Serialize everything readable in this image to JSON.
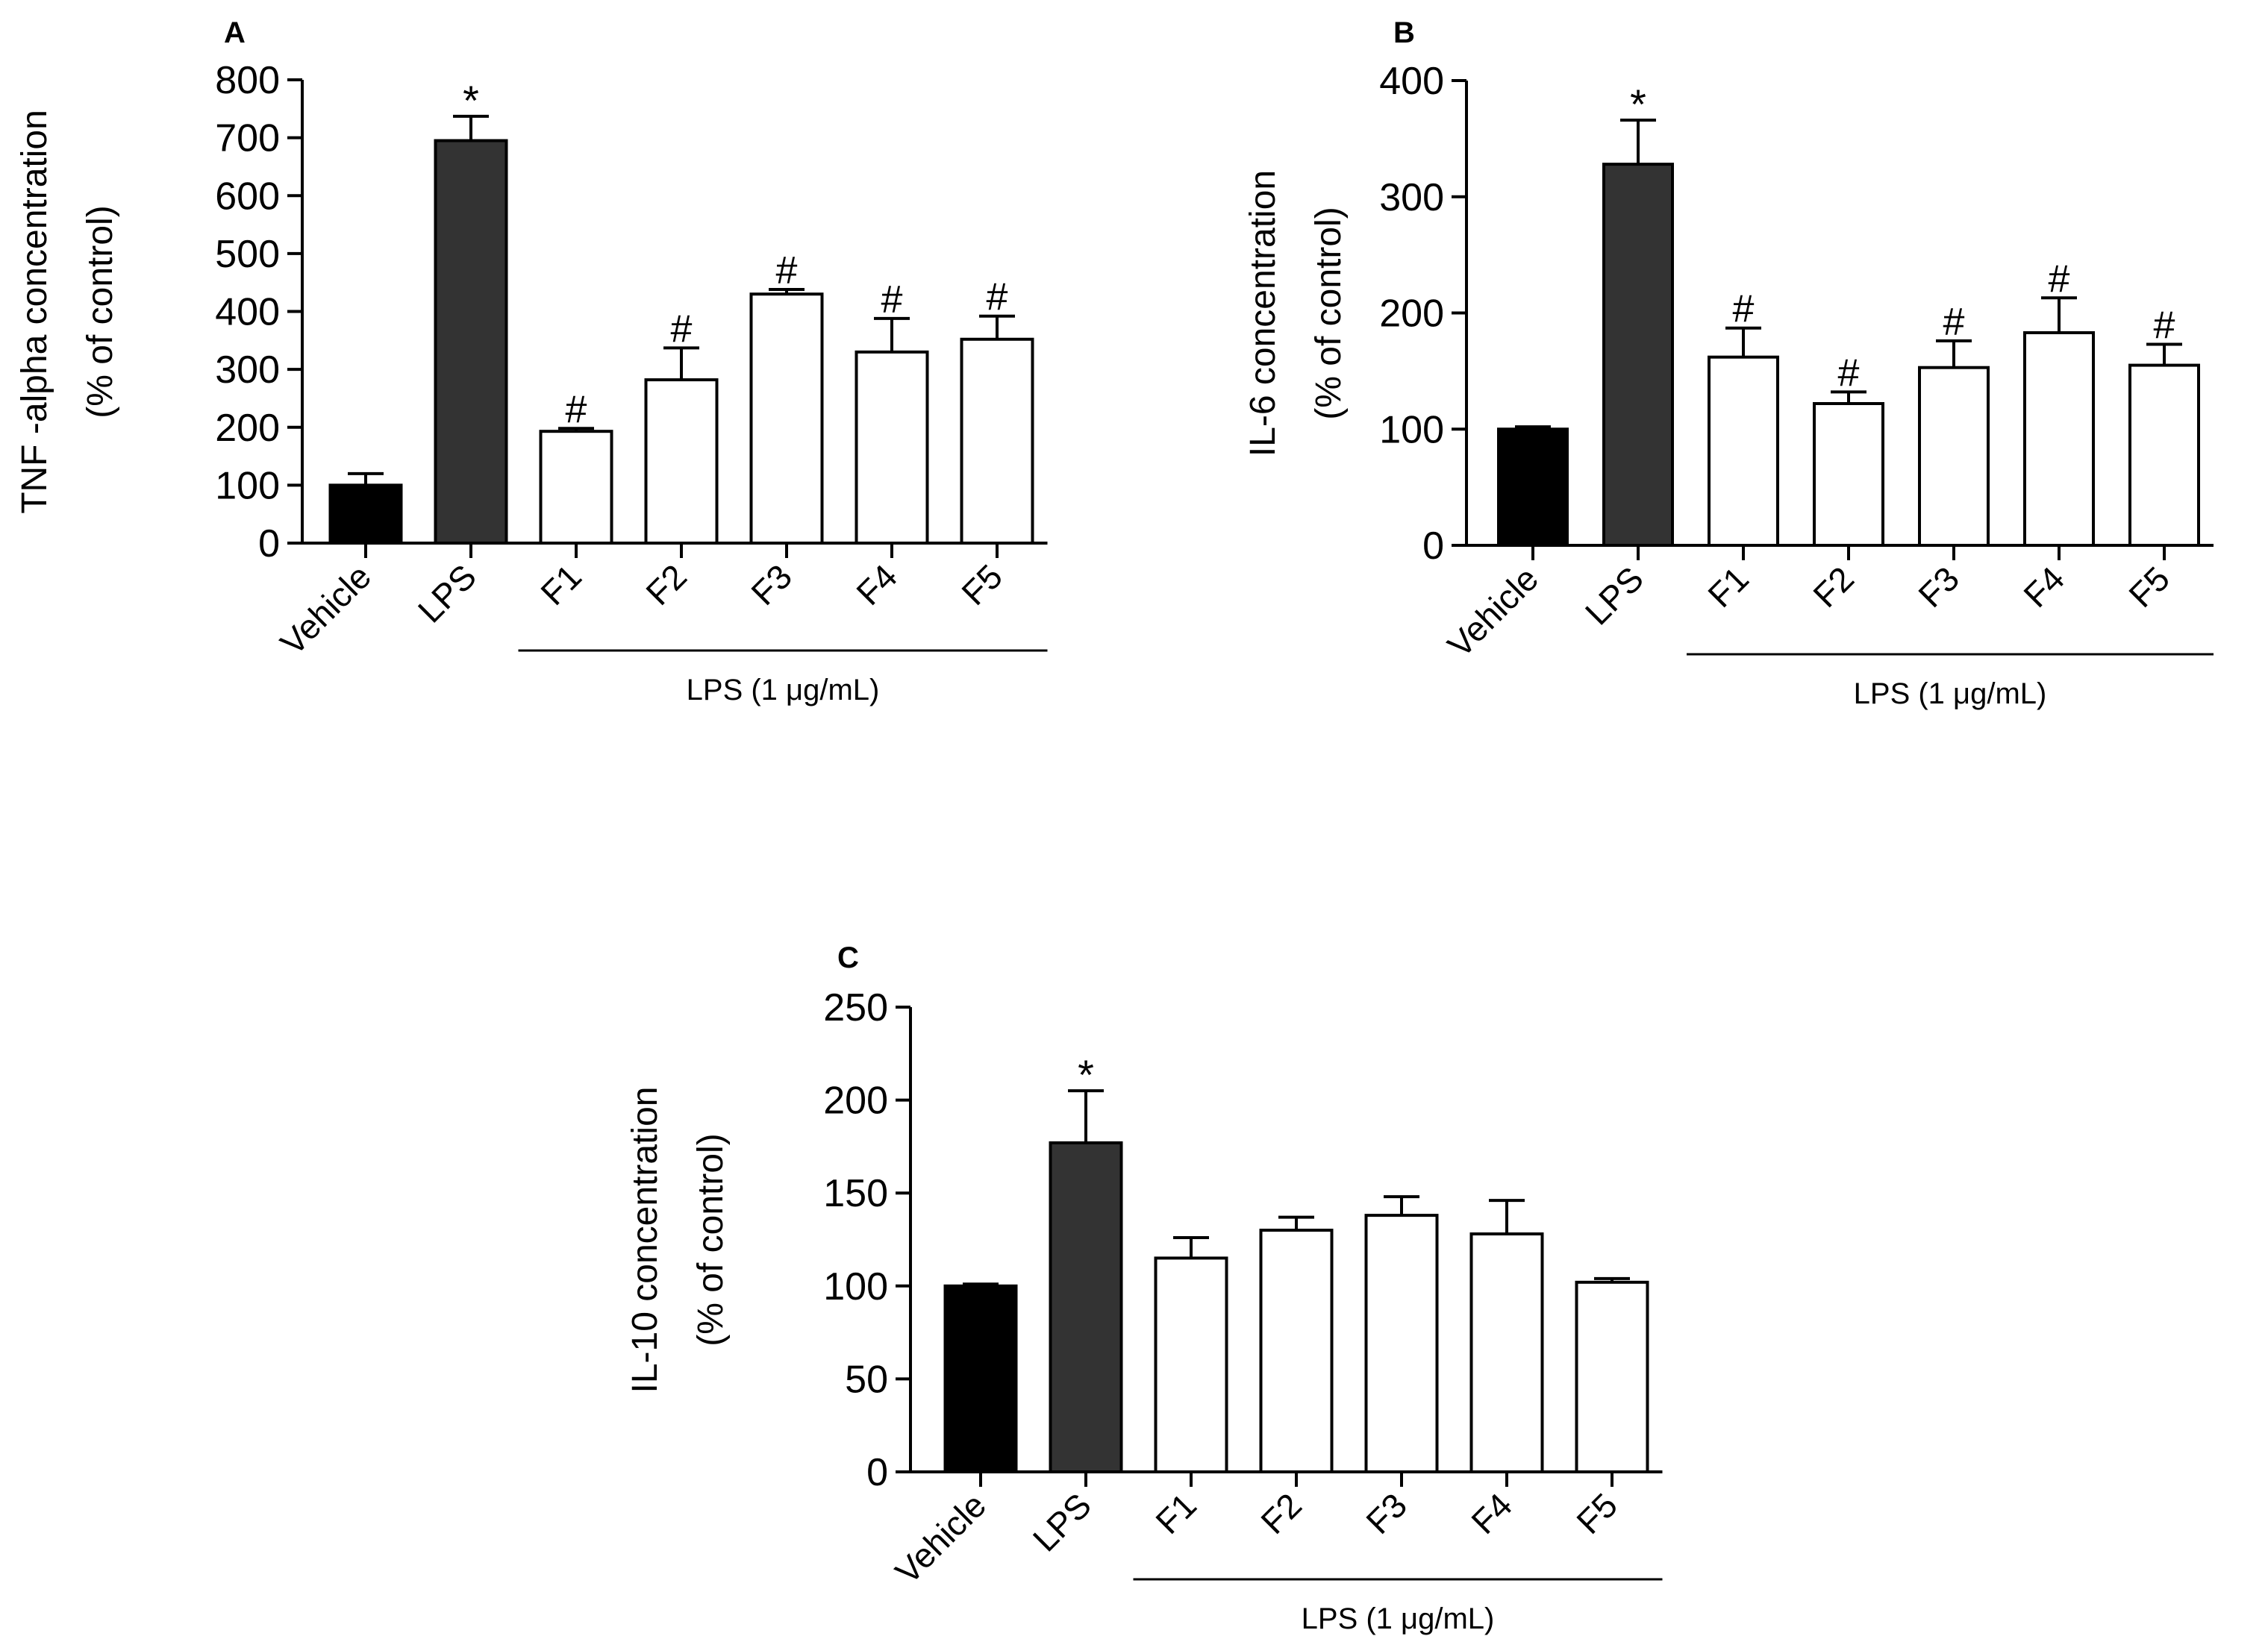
{
  "chart_data": [
    {
      "panel_label": "A",
      "type": "bar",
      "ylabel_line1": "TNF -alpha concentration",
      "ylabel_line2": "(% of control)",
      "xlabel": "",
      "group_label": "LPS (1 μg/mL)",
      "categories": [
        "Vehicle",
        "LPS",
        "F1",
        "F2",
        "F3",
        "F4",
        "F5"
      ],
      "values": [
        100,
        695,
        193,
        282,
        430,
        330,
        352
      ],
      "errors": [
        20,
        42,
        5,
        55,
        8,
        58,
        40
      ],
      "fills": [
        "#000000",
        "#333333",
        "#ffffff",
        "#ffffff",
        "#ffffff",
        "#ffffff",
        "#ffffff"
      ],
      "annotations": [
        "",
        "*",
        "#",
        "#",
        "#",
        "#",
        "#"
      ],
      "ylim": [
        0,
        800
      ],
      "yticks": [
        0,
        100,
        200,
        300,
        400,
        500,
        600,
        700,
        800
      ]
    },
    {
      "panel_label": "B",
      "type": "bar",
      "ylabel_line1": "IL-6 concentration",
      "ylabel_line2": "(% of control)",
      "xlabel": "",
      "group_label": "LPS (1 μg/mL)",
      "categories": [
        "Vehicle",
        "LPS",
        "F1",
        "F2",
        "F3",
        "F4",
        "F5"
      ],
      "values": [
        100,
        328,
        162,
        122,
        153,
        183,
        155
      ],
      "errors": [
        2,
        38,
        25,
        10,
        23,
        30,
        18
      ],
      "fills": [
        "#000000",
        "#333333",
        "#ffffff",
        "#ffffff",
        "#ffffff",
        "#ffffff",
        "#ffffff"
      ],
      "annotations": [
        "",
        "*",
        "#",
        "#",
        "#",
        "#",
        "#"
      ],
      "ylim": [
        0,
        400
      ],
      "yticks": [
        0,
        100,
        200,
        300,
        400
      ]
    },
    {
      "panel_label": "C",
      "type": "bar",
      "ylabel_line1": "IL-10 concentration",
      "ylabel_line2": "(% of control)",
      "xlabel": "",
      "group_label": "LPS (1 μg/mL)",
      "categories": [
        "Vehicle",
        "LPS",
        "F1",
        "F2",
        "F3",
        "F4",
        "F5"
      ],
      "values": [
        100,
        177,
        115,
        130,
        138,
        128,
        102
      ],
      "errors": [
        1,
        28,
        11,
        7,
        10,
        18,
        2
      ],
      "fills": [
        "#000000",
        "#333333",
        "#ffffff",
        "#ffffff",
        "#ffffff",
        "#ffffff",
        "#ffffff"
      ],
      "annotations": [
        "",
        "*",
        "",
        "",
        "",
        "",
        ""
      ],
      "ylim": [
        0,
        250
      ],
      "yticks": [
        0,
        50,
        100,
        150,
        200,
        250
      ]
    }
  ]
}
